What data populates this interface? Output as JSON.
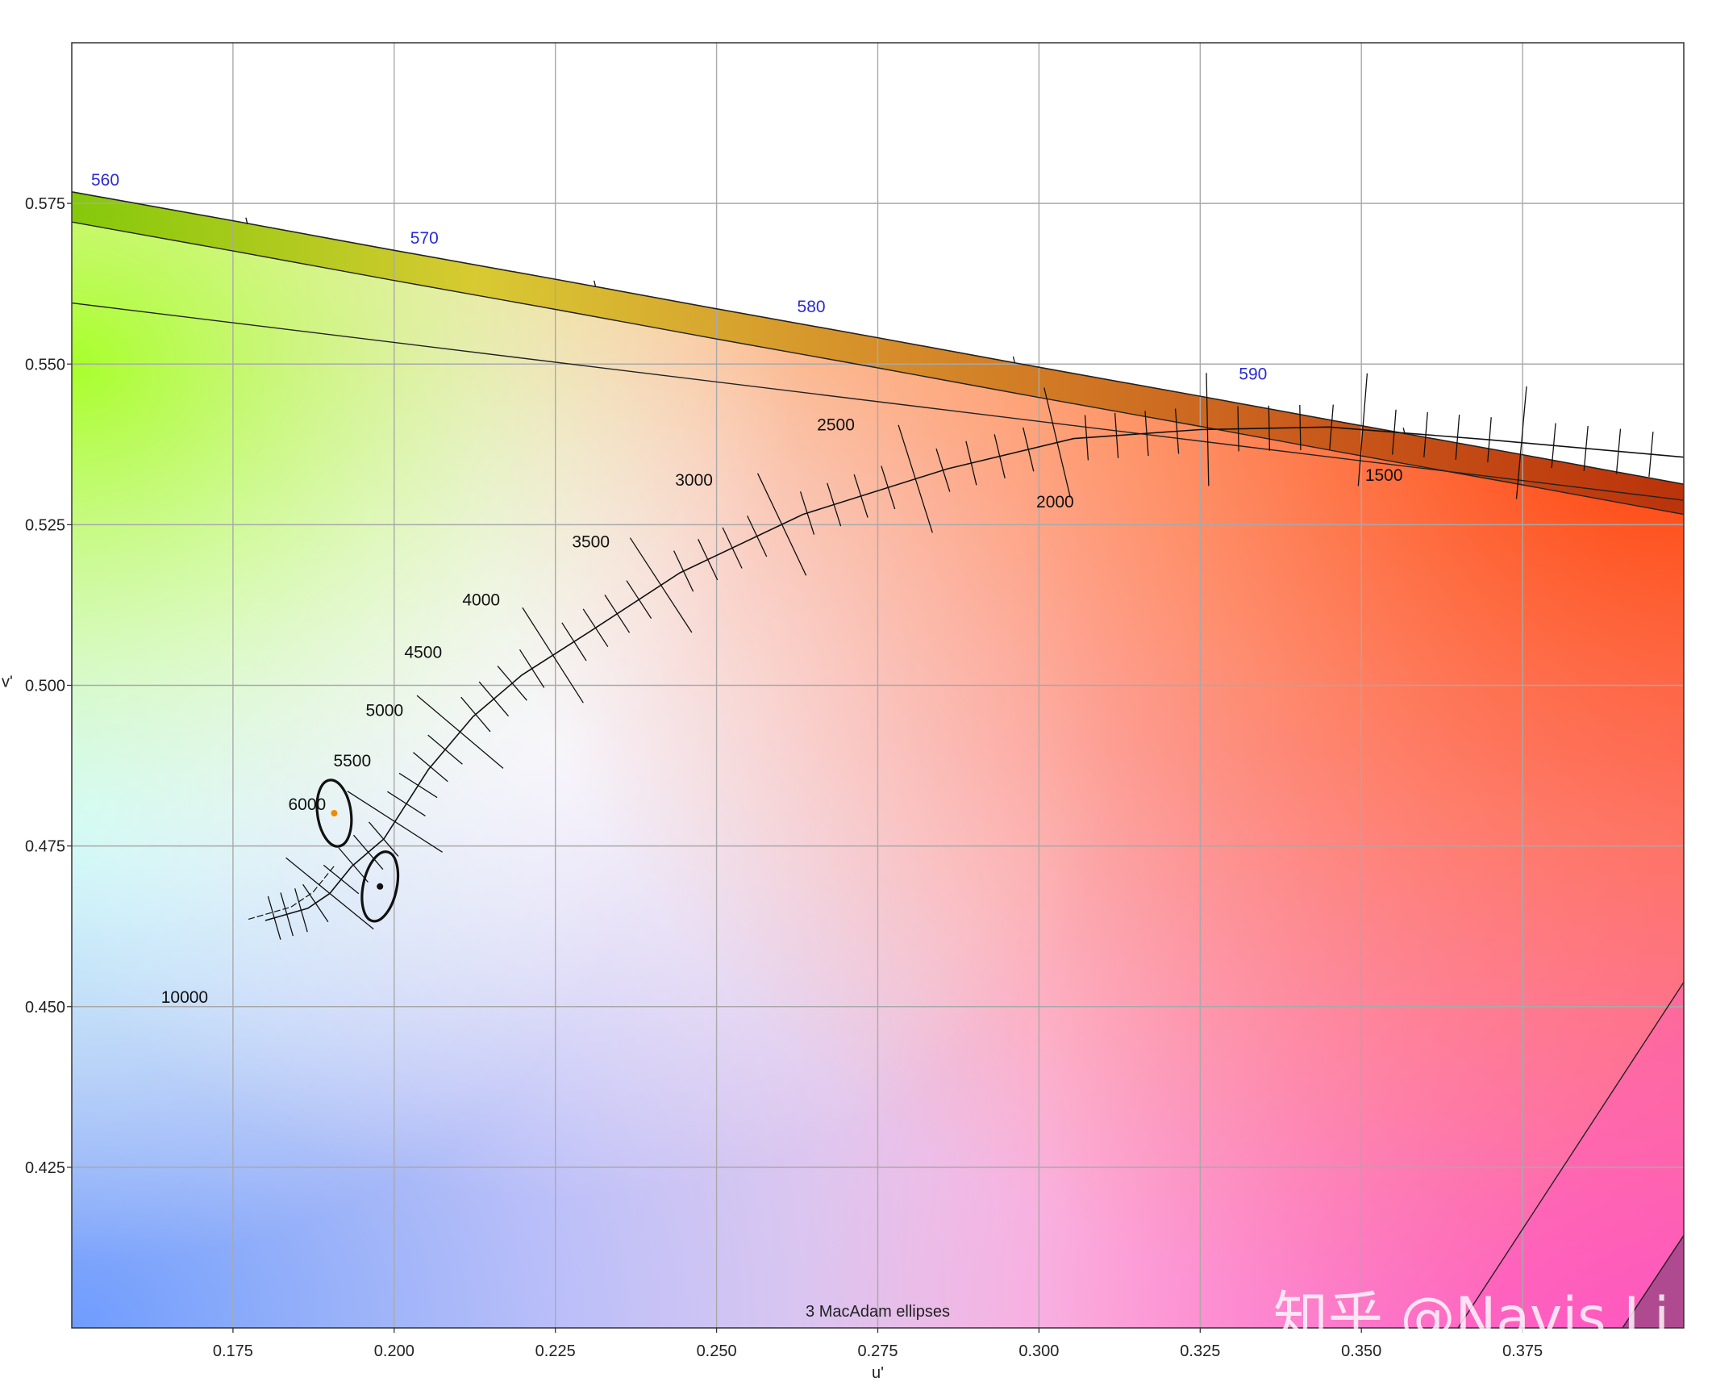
{
  "colors": {
    "grid": "#a9a9a9",
    "wavelength_label": "#2b2bd6",
    "ellipse_center_1": "#f08a00",
    "ellipse_center_2": "#111111"
  },
  "watermark": "知乎 @Navis Li",
  "chart_data": {
    "type": "scatter",
    "title": "",
    "xlabel": "u'",
    "ylabel": "v'",
    "xlim": [
      0.15,
      0.4
    ],
    "ylim": [
      0.4,
      0.6
    ],
    "grid": true,
    "x_ticks": [
      0.175,
      0.2,
      0.225,
      0.25,
      0.275,
      0.3,
      0.325,
      0.35,
      0.375
    ],
    "x_tick_labels": [
      "0.175",
      "0.200",
      "0.225",
      "0.250",
      "0.275",
      "0.300",
      "0.325",
      "0.350",
      "0.375"
    ],
    "y_ticks": [
      0.425,
      0.45,
      0.475,
      0.5,
      0.525,
      0.55,
      0.575
    ],
    "y_tick_labels": [
      "0.425",
      "0.450",
      "0.475",
      "0.500",
      "0.525",
      "0.550",
      "0.575"
    ],
    "spectral_locus": {
      "points": [
        [
          0.15,
          0.5768
        ],
        [
          0.175,
          0.5723
        ],
        [
          0.2,
          0.5677
        ],
        [
          0.225,
          0.5632
        ],
        [
          0.25,
          0.5586
        ],
        [
          0.275,
          0.5541
        ],
        [
          0.3,
          0.5495
        ],
        [
          0.325,
          0.545
        ],
        [
          0.35,
          0.5404
        ],
        [
          0.375,
          0.5359
        ],
        [
          0.4,
          0.5313
        ]
      ],
      "wavelength_labels": [
        {
          "nm": "560",
          "u": 0.153,
          "v": 0.5765
        },
        {
          "nm": "570",
          "u": 0.2025,
          "v": 0.5675
        },
        {
          "nm": "580",
          "u": 0.2625,
          "v": 0.5568
        },
        {
          "nm": "590",
          "u": 0.331,
          "v": 0.5463
        }
      ],
      "minor_ticks": [
        [
          0.177,
          0.5719
        ],
        [
          0.231,
          0.5621
        ],
        [
          0.296,
          0.5503
        ],
        [
          0.3565,
          0.5392
        ]
      ]
    },
    "planckian_locus": {
      "points": [
        [
          0.18,
          0.4634
        ],
        [
          0.1866,
          0.4653
        ],
        [
          0.19,
          0.4676
        ],
        [
          0.1934,
          0.4718
        ],
        [
          0.1984,
          0.4761
        ],
        [
          0.2053,
          0.4869
        ],
        [
          0.2122,
          0.4951
        ],
        [
          0.2198,
          0.5016
        ],
        [
          0.2304,
          0.5084
        ],
        [
          0.2443,
          0.5175
        ],
        [
          0.2634,
          0.5266
        ],
        [
          0.2858,
          0.5337
        ],
        [
          0.3054,
          0.5384
        ],
        [
          0.325,
          0.5398
        ],
        [
          0.345,
          0.5402
        ],
        [
          0.37,
          0.5382
        ],
        [
          0.4,
          0.5355
        ]
      ],
      "cct_labels": [
        {
          "cct": "1500",
          "u": 0.3535,
          "v": 0.5318
        },
        {
          "cct": "2000",
          "u": 0.3025,
          "v": 0.5277
        },
        {
          "cct": "2500",
          "u": 0.2685,
          "v": 0.5397
        },
        {
          "cct": "3000",
          "u": 0.2465,
          "v": 0.5311
        },
        {
          "cct": "3500",
          "u": 0.2305,
          "v": 0.5215
        },
        {
          "cct": "4000",
          "u": 0.2135,
          "v": 0.5124
        },
        {
          "cct": "4500",
          "u": 0.2045,
          "v": 0.5043
        },
        {
          "cct": "5000",
          "u": 0.1985,
          "v": 0.4952
        },
        {
          "cct": "5500",
          "u": 0.1935,
          "v": 0.4874
        },
        {
          "cct": "6000",
          "u": 0.1865,
          "v": 0.4806
        },
        {
          "cct": "10000",
          "u": 0.1675,
          "v": 0.4506
        }
      ]
    },
    "macadam_ellipses": {
      "caption": "3  MacAdam ellipses",
      "ellipses": [
        {
          "u": 0.1907,
          "v": 0.4801,
          "semi_axis_u": 0.0026,
          "semi_axis_v": 0.0052,
          "tilt_deg": -8
        },
        {
          "u": 0.1978,
          "v": 0.4687,
          "semi_axis_u": 0.0026,
          "semi_axis_v": 0.0055,
          "tilt_deg": 12
        }
      ]
    }
  }
}
